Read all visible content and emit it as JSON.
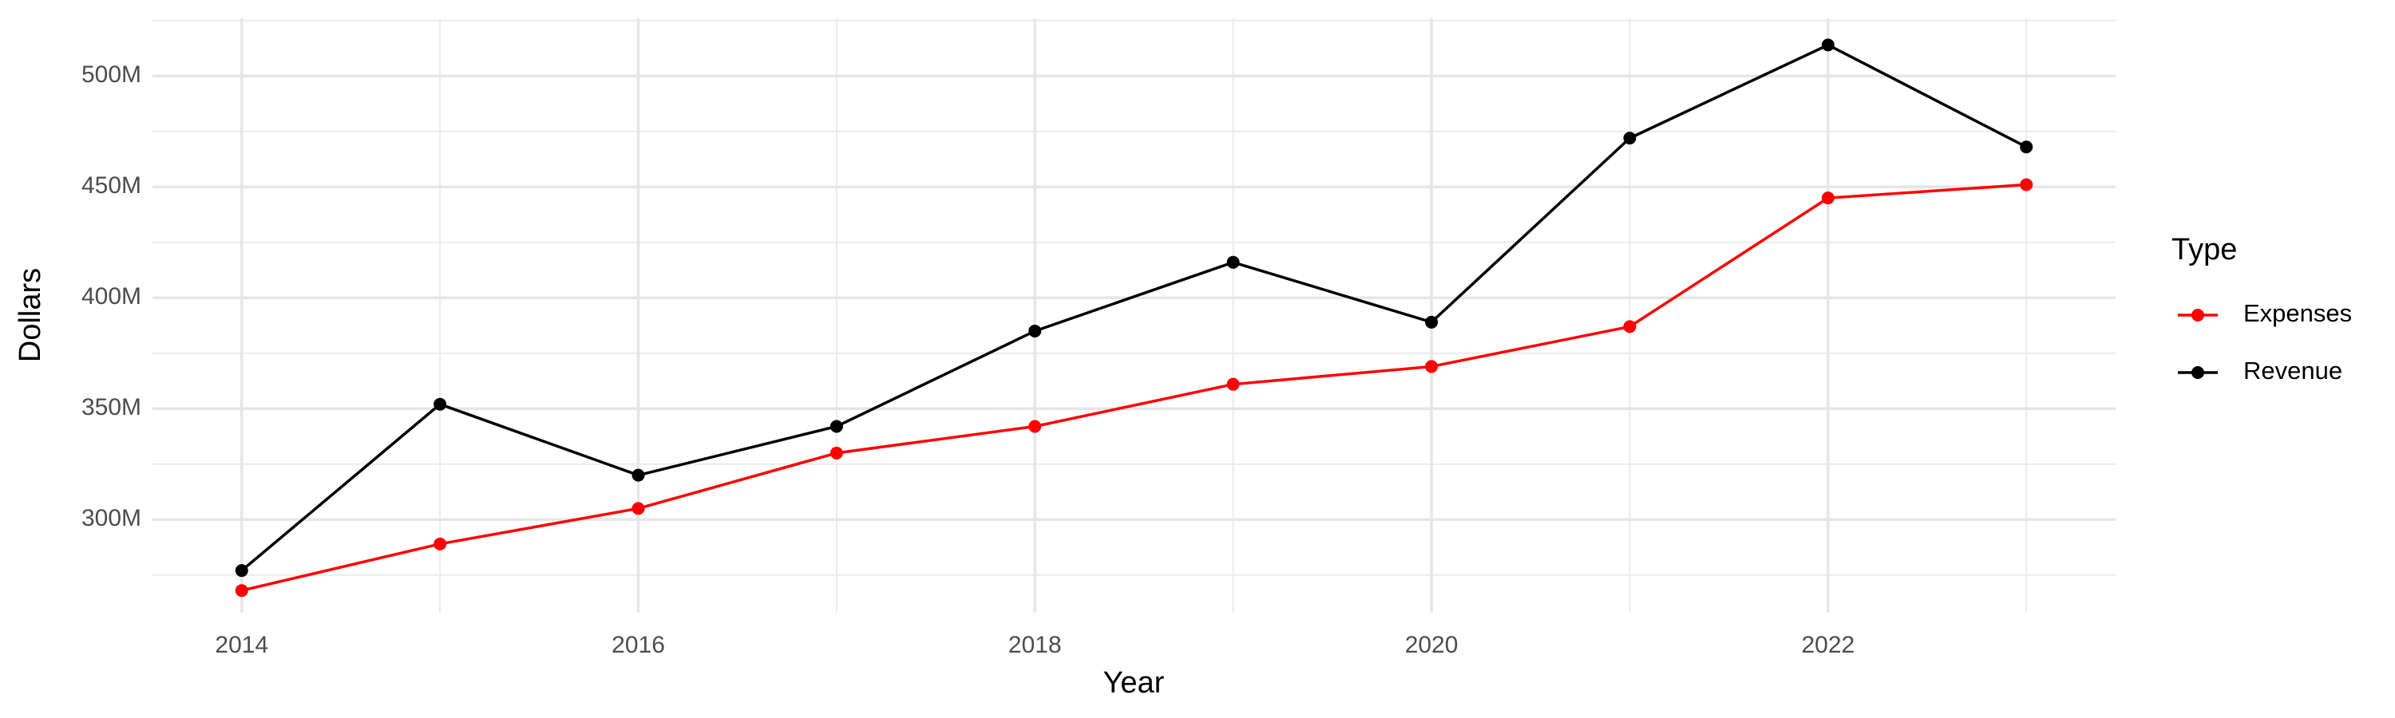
{
  "chart_data": {
    "type": "line",
    "x_label": "Year",
    "y_label": "Dollars",
    "legend_title": "Type",
    "x": [
      2014,
      2015,
      2016,
      2017,
      2018,
      2019,
      2020,
      2021,
      2022,
      2023
    ],
    "series": [
      {
        "name": "Expenses",
        "color": "#ff0000",
        "values": [
          268,
          289,
          305,
          330,
          342,
          361,
          369,
          387,
          445,
          451
        ]
      },
      {
        "name": "Revenue",
        "color": "#000000",
        "values": [
          277,
          352,
          320,
          342,
          385,
          416,
          389,
          472,
          514,
          468
        ]
      }
    ],
    "xlim": [
      2013.55,
      2023.45
    ],
    "xticks": [
      2014,
      2016,
      2018,
      2020,
      2022
    ],
    "minor_xticks": [
      2015,
      2017,
      2019,
      2021,
      2023
    ],
    "ylim": [
      258,
      526
    ],
    "yticks": [
      {
        "value": 300,
        "label": "300M"
      },
      {
        "value": 350,
        "label": "350M"
      },
      {
        "value": 400,
        "label": "400M"
      },
      {
        "value": 450,
        "label": "450M"
      },
      {
        "value": 500,
        "label": "500M"
      }
    ],
    "minor_yticks": [
      275,
      325,
      375,
      425,
      475,
      525
    ],
    "grid": true,
    "legend": "right"
  }
}
